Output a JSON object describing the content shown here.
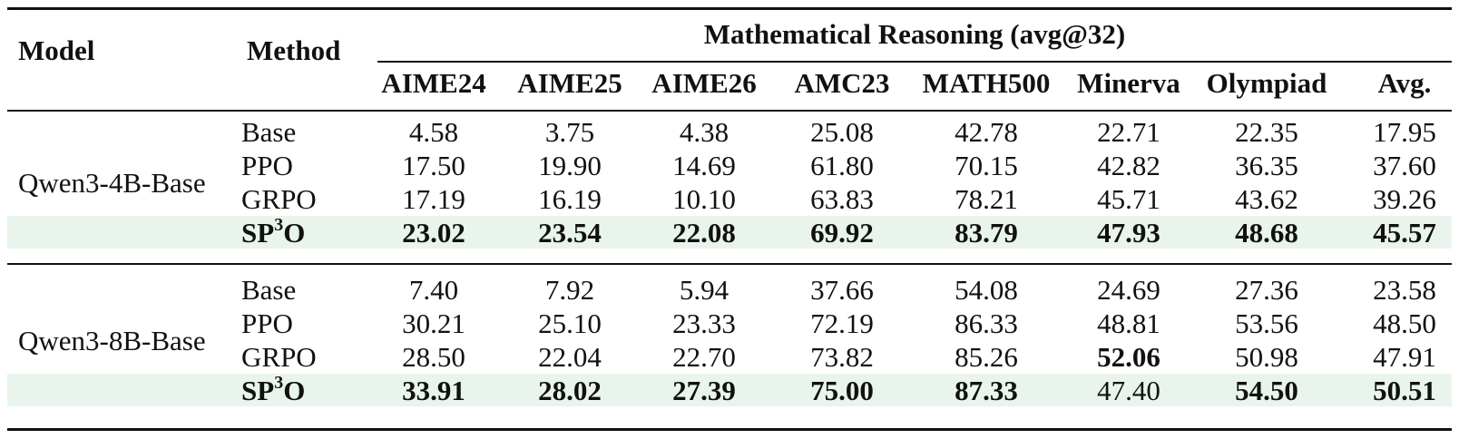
{
  "header": {
    "model": "Model",
    "method": "Method",
    "group": "Mathematical Reasoning (avg@32)",
    "columns": [
      "AIME24",
      "AIME25",
      "AIME26",
      "AMC23",
      "MATH500",
      "Minerva",
      "Olympiad",
      "Avg."
    ]
  },
  "groups": [
    {
      "model": "Qwen3-4B-Base",
      "rows": [
        {
          "method": "Base",
          "values": [
            "4.58",
            "3.75",
            "4.38",
            "25.08",
            "42.78",
            "22.71",
            "22.35",
            "17.95"
          ],
          "bold": [
            false,
            false,
            false,
            false,
            false,
            false,
            false,
            false
          ]
        },
        {
          "method": "PPO",
          "values": [
            "17.50",
            "19.90",
            "14.69",
            "61.80",
            "70.15",
            "42.82",
            "36.35",
            "37.60"
          ],
          "bold": [
            false,
            false,
            false,
            false,
            false,
            false,
            false,
            false
          ]
        },
        {
          "method": "GRPO",
          "values": [
            "17.19",
            "16.19",
            "10.10",
            "63.83",
            "78.21",
            "45.71",
            "43.62",
            "39.26"
          ],
          "bold": [
            false,
            false,
            false,
            false,
            false,
            false,
            false,
            false
          ]
        },
        {
          "method": "SP",
          "method_sup": "3",
          "method_suffix": "O",
          "highlight": true,
          "values": [
            "23.02",
            "23.54",
            "22.08",
            "69.92",
            "83.79",
            "47.93",
            "48.68",
            "45.57"
          ],
          "bold": [
            true,
            true,
            true,
            true,
            true,
            true,
            true,
            true
          ]
        }
      ]
    },
    {
      "model": "Qwen3-8B-Base",
      "rows": [
        {
          "method": "Base",
          "values": [
            "7.40",
            "7.92",
            "5.94",
            "37.66",
            "54.08",
            "24.69",
            "27.36",
            "23.58"
          ],
          "bold": [
            false,
            false,
            false,
            false,
            false,
            false,
            false,
            false
          ]
        },
        {
          "method": "PPO",
          "values": [
            "30.21",
            "25.10",
            "23.33",
            "72.19",
            "86.33",
            "48.81",
            "53.56",
            "48.50"
          ],
          "bold": [
            false,
            false,
            false,
            false,
            false,
            false,
            false,
            false
          ]
        },
        {
          "method": "GRPO",
          "values": [
            "28.50",
            "22.04",
            "22.70",
            "73.82",
            "85.26",
            "52.06",
            "50.98",
            "47.91"
          ],
          "bold": [
            false,
            false,
            false,
            false,
            false,
            true,
            false,
            false
          ]
        },
        {
          "method": "SP",
          "method_sup": "3",
          "method_suffix": "O",
          "highlight": true,
          "values": [
            "33.91",
            "28.02",
            "27.39",
            "75.00",
            "87.33",
            "47.40",
            "54.50",
            "50.51"
          ],
          "bold": [
            true,
            true,
            true,
            true,
            true,
            false,
            true,
            true
          ]
        }
      ]
    }
  ],
  "colors": {
    "highlight": "#e9f5ec",
    "rule": "#111111"
  }
}
